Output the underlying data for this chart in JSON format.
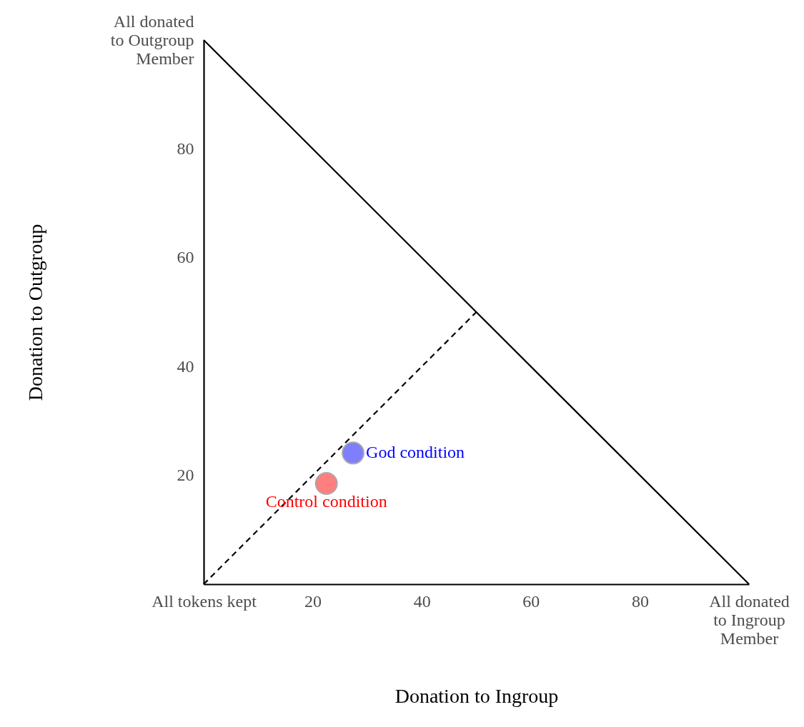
{
  "chart_data": {
    "type": "scatter",
    "xlabel": "Donation to Ingroup",
    "ylabel": "Donation to Outgroup",
    "xlim": [
      0,
      100
    ],
    "ylim": [
      0,
      100
    ],
    "xticks": [
      {
        "value": 0,
        "label": "All tokens kept"
      },
      20,
      40,
      60,
      80,
      {
        "value": 100,
        "label": "All donated to Ingroup Member"
      }
    ],
    "yticks": [
      20,
      40,
      60,
      80,
      {
        "value": 100,
        "label": "All donated to Outgroup Member"
      }
    ],
    "grid": false,
    "legend": false,
    "marker": "circle",
    "series": [
      {
        "type": "line",
        "color": "#000000",
        "line_style": "solid",
        "marker": "none",
        "x": [
          0,
          100
        ],
        "values": [
          100,
          0
        ]
      },
      {
        "type": "line",
        "color": "#000000",
        "line_style": "dashed",
        "marker": "none",
        "x": [
          0,
          50
        ],
        "values": [
          0,
          50
        ]
      },
      {
        "type": "scatter",
        "name": "God condition",
        "color": "#0000ff",
        "x": [
          27.4
        ],
        "values": [
          24.1
        ]
      },
      {
        "type": "scatter",
        "name": "Control condition",
        "color": "#ff0000",
        "x": [
          22.5
        ],
        "values": [
          18.5
        ]
      }
    ]
  }
}
